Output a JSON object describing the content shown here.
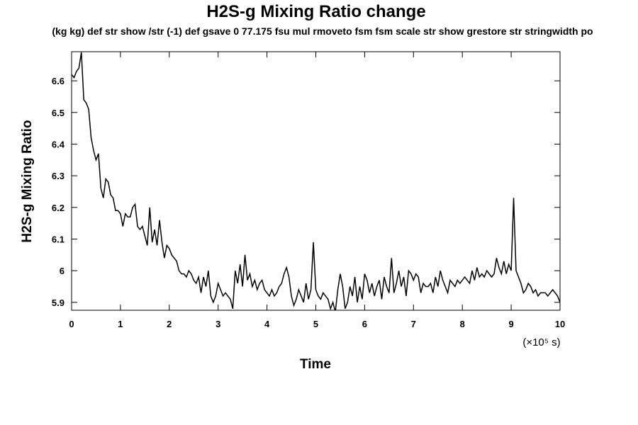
{
  "chart_data": {
    "type": "line",
    "title": "H2S-g Mixing Ratio change",
    "subtitle": "(kg kg) def str show /str (-1) def gsave 0 77.175 fsu mul rmoveto fsm fsm scale str show grestore str stringwidth po",
    "y_label": "H2S-g Mixing Ratio",
    "x_label": "Time",
    "x_unit_label": "(×10⁵ s)",
    "xlim": [
      0,
      10
    ],
    "xticks": [
      0,
      1,
      2,
      3,
      4,
      5,
      6,
      7,
      8,
      9,
      10
    ],
    "ylim": [
      5.875,
      6.692
    ],
    "yticks": [
      5.9,
      6.0,
      6.1,
      6.2,
      6.3,
      6.4,
      6.5,
      6.6
    ],
    "grid": false,
    "x": [
      0,
      0.05,
      0.1,
      0.15,
      0.2,
      0.25,
      0.3,
      0.35,
      0.4,
      0.45,
      0.5,
      0.55,
      0.6,
      0.65,
      0.7,
      0.75,
      0.8,
      0.85,
      0.9,
      0.95,
      1,
      1.05,
      1.1,
      1.15,
      1.2,
      1.25,
      1.3,
      1.35,
      1.4,
      1.45,
      1.5,
      1.55,
      1.6,
      1.65,
      1.7,
      1.75,
      1.8,
      1.85,
      1.9,
      1.95,
      2,
      2.05,
      2.1,
      2.15,
      2.2,
      2.25,
      2.3,
      2.35,
      2.4,
      2.45,
      2.5,
      2.55,
      2.6,
      2.65,
      2.7,
      2.75,
      2.8,
      2.85,
      2.9,
      2.95,
      3,
      3.05,
      3.1,
      3.15,
      3.2,
      3.25,
      3.3,
      3.35,
      3.4,
      3.45,
      3.5,
      3.55,
      3.6,
      3.65,
      3.7,
      3.75,
      3.8,
      3.85,
      3.9,
      3.95,
      4,
      4.05,
      4.1,
      4.15,
      4.2,
      4.25,
      4.3,
      4.35,
      4.4,
      4.45,
      4.5,
      4.55,
      4.6,
      4.65,
      4.7,
      4.75,
      4.8,
      4.85,
      4.9,
      4.95,
      5,
      5.05,
      5.1,
      5.15,
      5.2,
      5.25,
      5.3,
      5.35,
      5.4,
      5.45,
      5.5,
      5.55,
      5.6,
      5.65,
      5.7,
      5.75,
      5.8,
      5.85,
      5.9,
      5.95,
      6,
      6.05,
      6.1,
      6.15,
      6.2,
      6.25,
      6.3,
      6.35,
      6.4,
      6.45,
      6.5,
      6.55,
      6.6,
      6.65,
      6.7,
      6.75,
      6.8,
      6.85,
      6.9,
      6.95,
      7,
      7.05,
      7.1,
      7.15,
      7.2,
      7.25,
      7.3,
      7.35,
      7.4,
      7.45,
      7.5,
      7.55,
      7.6,
      7.65,
      7.7,
      7.75,
      7.8,
      7.85,
      7.9,
      7.95,
      8,
      8.05,
      8.1,
      8.15,
      8.2,
      8.25,
      8.3,
      8.35,
      8.4,
      8.45,
      8.5,
      8.55,
      8.6,
      8.65,
      8.7,
      8.75,
      8.8,
      8.85,
      8.9,
      8.95,
      9,
      9.05,
      9.1,
      9.15,
      9.2,
      9.25,
      9.3,
      9.35,
      9.4,
      9.45,
      9.5,
      9.55,
      9.6,
      9.65,
      9.7,
      9.75,
      9.8,
      9.85,
      9.9,
      9.95,
      10
    ],
    "series": [
      {
        "color": "#000000",
        "values": [
          6.62,
          6.61,
          6.63,
          6.64,
          6.69,
          6.54,
          6.53,
          6.51,
          6.42,
          6.38,
          6.35,
          6.37,
          6.26,
          6.23,
          6.29,
          6.28,
          6.24,
          6.23,
          6.19,
          6.19,
          6.18,
          6.14,
          6.18,
          6.17,
          6.17,
          6.2,
          6.21,
          6.14,
          6.13,
          6.14,
          6.11,
          6.08,
          6.2,
          6.09,
          6.13,
          6.08,
          6.16,
          6.09,
          6.04,
          6.08,
          6.07,
          6.05,
          6.04,
          6.03,
          6.0,
          5.99,
          5.99,
          5.98,
          6.0,
          5.99,
          5.97,
          5.96,
          5.98,
          5.93,
          5.98,
          5.95,
          6.0,
          5.92,
          5.9,
          5.92,
          5.96,
          5.94,
          5.92,
          5.93,
          5.92,
          5.91,
          5.88,
          6.0,
          5.96,
          6.02,
          5.95,
          6.05,
          5.97,
          5.99,
          5.95,
          5.97,
          5.94,
          5.96,
          5.97,
          5.94,
          5.93,
          5.92,
          5.94,
          5.92,
          5.93,
          5.95,
          5.96,
          5.99,
          6.01,
          5.98,
          5.92,
          5.89,
          5.91,
          5.94,
          5.92,
          5.9,
          5.96,
          5.91,
          5.94,
          6.09,
          5.94,
          5.92,
          5.91,
          5.93,
          5.92,
          5.91,
          5.88,
          5.9,
          5.87,
          5.94,
          5.99,
          5.95,
          5.88,
          5.9,
          5.95,
          5.92,
          5.98,
          5.9,
          5.95,
          5.91,
          5.99,
          5.97,
          5.93,
          5.96,
          5.92,
          5.95,
          5.97,
          5.91,
          5.98,
          5.95,
          5.93,
          6.04,
          5.93,
          5.96,
          6.0,
          5.95,
          5.98,
          5.92,
          6.0,
          5.99,
          5.97,
          5.99,
          5.98,
          5.93,
          5.96,
          5.95,
          5.95,
          5.96,
          5.93,
          5.98,
          5.95,
          6.0,
          5.97,
          5.95,
          5.93,
          5.97,
          5.96,
          5.95,
          5.97,
          5.96,
          5.97,
          5.98,
          5.97,
          5.96,
          6.0,
          5.97,
          6.01,
          5.98,
          5.99,
          5.98,
          6.0,
          5.99,
          5.98,
          5.99,
          6.04,
          6.01,
          5.99,
          6.03,
          5.99,
          6.02,
          6.0,
          6.23,
          6.0,
          5.98,
          5.96,
          5.93,
          5.94,
          5.96,
          5.95,
          5.93,
          5.94,
          5.92,
          5.93,
          5.93,
          5.93,
          5.92,
          5.93,
          5.94,
          5.93,
          5.92,
          5.9
        ]
      }
    ]
  }
}
